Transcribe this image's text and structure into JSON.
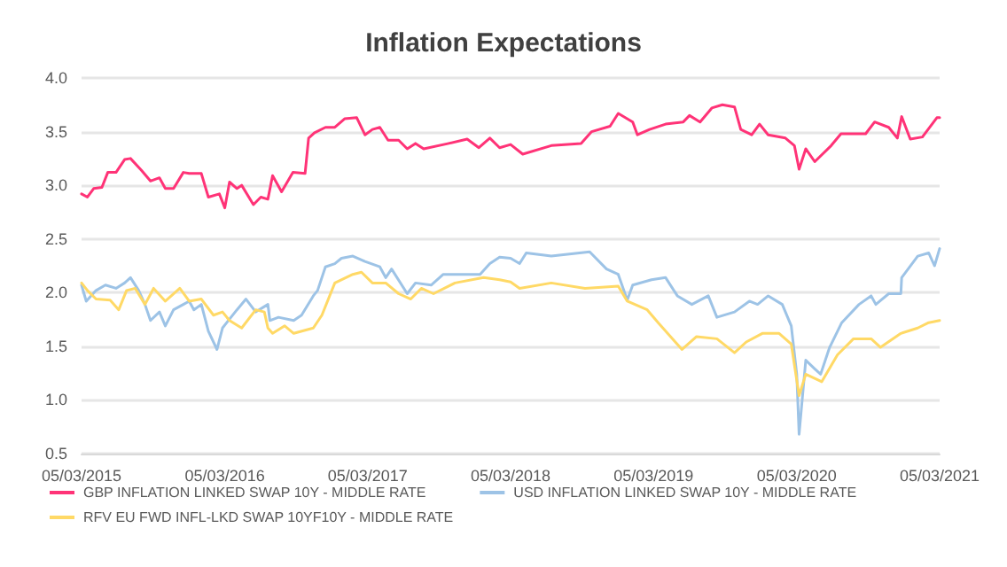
{
  "chart_data": {
    "type": "line",
    "title": "Inflation Expectations",
    "xlim": [
      "2015-03-05",
      "2021-03-05"
    ],
    "xticks": [
      {
        "value": "2015-03-05",
        "label": "05/03/2015"
      },
      {
        "value": "2016-03-05",
        "label": "05/03/2016"
      },
      {
        "value": "2017-03-05",
        "label": "05/03/2017"
      },
      {
        "value": "2018-03-05",
        "label": "05/03/2018"
      },
      {
        "value": "2019-03-05",
        "label": "05/03/2019"
      },
      {
        "value": "2020-03-05",
        "label": "05/03/2020"
      },
      {
        "value": "2021-03-05",
        "label": "05/03/2021"
      }
    ],
    "ylim": [
      0.5,
      4.0
    ],
    "yticks": [
      {
        "value": 0.5,
        "label": "0.5"
      },
      {
        "value": 1.0,
        "label": "1.0"
      },
      {
        "value": 1.5,
        "label": "1.5"
      },
      {
        "value": 2.0,
        "label": "2.0"
      },
      {
        "value": 2.5,
        "label": "2.5"
      },
      {
        "value": 3.0,
        "label": "3.0"
      },
      {
        "value": 3.5,
        "label": "3.5"
      },
      {
        "value": 4.0,
        "label": "4.0"
      }
    ],
    "grid": "y",
    "legend": "bottom",
    "marker": "none",
    "line_style": "solid",
    "series": [
      {
        "name": "GBP INFLATION LINKED SWAP 10Y - MIDDLE RATE",
        "color": "#ff3377",
        "x": [
          "2015-03-05",
          "2015-03-20",
          "2015-04-05",
          "2015-04-26",
          "2015-05-11",
          "2015-06-01",
          "2015-06-23",
          "2015-07-08",
          "2015-08-05",
          "2015-08-28",
          "2015-09-20",
          "2015-10-05",
          "2015-10-26",
          "2015-11-20",
          "2015-12-05",
          "2016-01-05",
          "2016-01-23",
          "2016-02-20",
          "2016-03-05",
          "2016-03-17",
          "2016-04-05",
          "2016-04-17",
          "2016-05-17",
          "2016-06-05",
          "2016-06-23",
          "2016-07-05",
          "2016-07-28",
          "2016-08-26",
          "2016-09-26",
          "2016-10-05",
          "2016-10-20",
          "2016-11-17",
          "2016-12-11",
          "2017-01-05",
          "2017-02-05",
          "2017-02-26",
          "2017-03-17",
          "2017-04-05",
          "2017-04-26",
          "2017-05-23",
          "2017-06-14",
          "2017-07-05",
          "2017-07-26",
          "2017-09-28",
          "2017-11-14",
          "2017-12-14",
          "2018-01-11",
          "2018-02-05",
          "2018-03-05",
          "2018-04-05",
          "2018-06-17",
          "2018-09-01",
          "2018-09-28",
          "2018-11-14",
          "2018-12-05",
          "2019-01-11",
          "2019-01-23",
          "2019-02-23",
          "2019-04-05",
          "2019-05-20",
          "2019-06-05",
          "2019-07-02",
          "2019-08-01",
          "2019-08-28",
          "2019-09-28",
          "2019-10-14",
          "2019-11-11",
          "2019-12-01",
          "2019-12-23",
          "2020-02-05",
          "2020-02-28",
          "2020-03-11",
          "2020-03-28",
          "2020-04-20",
          "2020-06-01",
          "2020-06-26",
          "2020-08-28",
          "2020-09-20",
          "2020-10-26",
          "2020-11-17",
          "2020-11-28",
          "2020-12-20",
          "2021-01-20",
          "2021-02-26",
          "2021-03-05"
        ],
        "values": [
          2.92,
          2.89,
          2.97,
          2.98,
          3.12,
          3.12,
          3.24,
          3.25,
          3.14,
          3.04,
          3.07,
          2.97,
          2.97,
          3.12,
          3.11,
          3.11,
          2.89,
          2.92,
          2.79,
          3.03,
          2.97,
          3.0,
          2.82,
          2.89,
          2.87,
          3.09,
          2.94,
          3.12,
          3.11,
          3.44,
          3.49,
          3.54,
          3.54,
          3.62,
          3.63,
          3.47,
          3.52,
          3.54,
          3.42,
          3.42,
          3.34,
          3.39,
          3.34,
          3.39,
          3.43,
          3.35,
          3.44,
          3.35,
          3.38,
          3.29,
          3.37,
          3.39,
          3.5,
          3.55,
          3.67,
          3.59,
          3.47,
          3.52,
          3.57,
          3.59,
          3.65,
          3.59,
          3.72,
          3.75,
          3.73,
          3.52,
          3.47,
          3.57,
          3.47,
          3.44,
          3.37,
          3.15,
          3.34,
          3.22,
          3.37,
          3.48,
          3.48,
          3.59,
          3.54,
          3.44,
          3.64,
          3.43,
          3.45,
          3.63,
          3.63
        ]
      },
      {
        "name": "USD INFLATION LINKED SWAP 10Y - MIDDLE RATE",
        "color": "#9dc3e6",
        "x": [
          "2015-03-05",
          "2015-03-17",
          "2015-04-11",
          "2015-05-05",
          "2015-06-01",
          "2015-06-23",
          "2015-07-08",
          "2015-07-29",
          "2015-08-14",
          "2015-08-28",
          "2015-09-20",
          "2015-10-05",
          "2015-10-26",
          "2015-11-20",
          "2015-12-05",
          "2015-12-17",
          "2016-01-05",
          "2016-01-23",
          "2016-02-14",
          "2016-02-28",
          "2016-04-05",
          "2016-04-28",
          "2016-05-23",
          "2016-06-23",
          "2016-06-28",
          "2016-07-20",
          "2016-08-28",
          "2016-09-17",
          "2016-10-17",
          "2016-10-28",
          "2016-11-17",
          "2016-12-11",
          "2016-12-28",
          "2017-01-26",
          "2017-02-26",
          "2017-04-05",
          "2017-04-20",
          "2017-05-05",
          "2017-06-14",
          "2017-07-05",
          "2017-08-14",
          "2017-09-14",
          "2017-11-11",
          "2017-12-17",
          "2018-01-11",
          "2018-02-05",
          "2018-03-05",
          "2018-03-28",
          "2018-04-14",
          "2018-06-17",
          "2018-09-23",
          "2018-11-05",
          "2018-12-05",
          "2018-12-28",
          "2019-01-11",
          "2019-02-28",
          "2019-04-05",
          "2019-05-05",
          "2019-06-11",
          "2019-07-23",
          "2019-08-14",
          "2019-09-28",
          "2019-11-05",
          "2019-11-26",
          "2019-12-23",
          "2020-01-28",
          "2020-02-20",
          "2020-03-05",
          "2020-03-11",
          "2020-03-28",
          "2020-04-20",
          "2020-05-05",
          "2020-05-28",
          "2020-06-28",
          "2020-08-11",
          "2020-09-11",
          "2020-09-23",
          "2020-10-26",
          "2020-11-26",
          "2020-11-28",
          "2021-01-08",
          "2021-02-05",
          "2021-02-20",
          "2021-03-05"
        ],
        "values": [
          2.07,
          1.92,
          2.02,
          2.07,
          2.04,
          2.09,
          2.14,
          2.02,
          1.89,
          1.74,
          1.82,
          1.69,
          1.84,
          1.89,
          1.92,
          1.84,
          1.89,
          1.64,
          1.47,
          1.67,
          1.84,
          1.94,
          1.82,
          1.89,
          1.74,
          1.77,
          1.74,
          1.79,
          1.97,
          2.02,
          2.24,
          2.27,
          2.32,
          2.34,
          2.29,
          2.24,
          2.14,
          2.22,
          1.99,
          2.09,
          2.07,
          2.17,
          2.17,
          2.17,
          2.27,
          2.33,
          2.32,
          2.27,
          2.37,
          2.34,
          2.38,
          2.22,
          2.17,
          1.93,
          2.07,
          2.12,
          2.14,
          1.97,
          1.89,
          1.97,
          1.77,
          1.82,
          1.92,
          1.89,
          1.97,
          1.89,
          1.69,
          1.24,
          0.68,
          1.37,
          1.29,
          1.24,
          1.49,
          1.72,
          1.89,
          1.97,
          1.89,
          1.99,
          1.99,
          2.14,
          2.34,
          2.37,
          2.25,
          2.41
        ]
      },
      {
        "name": "RFV EU FWD INFL-LKD SWAP 10YF10Y - MIDDLE RATE",
        "color": "#ffd966",
        "x": [
          "2015-03-05",
          "2015-03-20",
          "2015-04-11",
          "2015-05-17",
          "2015-06-08",
          "2015-06-28",
          "2015-07-20",
          "2015-08-14",
          "2015-09-05",
          "2015-10-05",
          "2015-11-11",
          "2015-12-05",
          "2016-01-05",
          "2016-02-05",
          "2016-02-28",
          "2016-03-17",
          "2016-04-17",
          "2016-05-23",
          "2016-06-14",
          "2016-06-23",
          "2016-07-05",
          "2016-08-05",
          "2016-08-28",
          "2016-10-17",
          "2016-11-08",
          "2016-12-11",
          "2017-01-26",
          "2017-02-17",
          "2017-03-17",
          "2017-04-20",
          "2017-05-23",
          "2017-06-23",
          "2017-07-20",
          "2017-08-20",
          "2017-10-14",
          "2017-12-26",
          "2018-02-05",
          "2018-03-05",
          "2018-03-28",
          "2018-06-17",
          "2018-09-11",
          "2018-12-05",
          "2018-12-28",
          "2019-02-17",
          "2019-03-17",
          "2019-05-17",
          "2019-06-23",
          "2019-08-14",
          "2019-09-28",
          "2019-10-28",
          "2019-12-08",
          "2020-01-20",
          "2020-02-20",
          "2020-03-11",
          "2020-03-28",
          "2020-05-08",
          "2020-06-17",
          "2020-07-28",
          "2020-09-11",
          "2020-10-05",
          "2020-11-26",
          "2021-01-08",
          "2021-02-05",
          "2021-03-05"
        ],
        "values": [
          2.09,
          2.02,
          1.94,
          1.93,
          1.84,
          2.02,
          2.04,
          1.89,
          2.04,
          1.92,
          2.04,
          1.92,
          1.94,
          1.79,
          1.82,
          1.74,
          1.67,
          1.84,
          1.82,
          1.67,
          1.62,
          1.69,
          1.62,
          1.67,
          1.79,
          2.09,
          2.17,
          2.19,
          2.09,
          2.09,
          1.99,
          1.94,
          2.04,
          1.99,
          2.09,
          2.14,
          2.12,
          2.1,
          2.04,
          2.09,
          2.04,
          2.06,
          1.92,
          1.84,
          1.72,
          1.47,
          1.59,
          1.57,
          1.44,
          1.54,
          1.62,
          1.62,
          1.52,
          1.04,
          1.24,
          1.17,
          1.42,
          1.57,
          1.57,
          1.49,
          1.62,
          1.67,
          1.72,
          1.74
        ]
      }
    ]
  }
}
